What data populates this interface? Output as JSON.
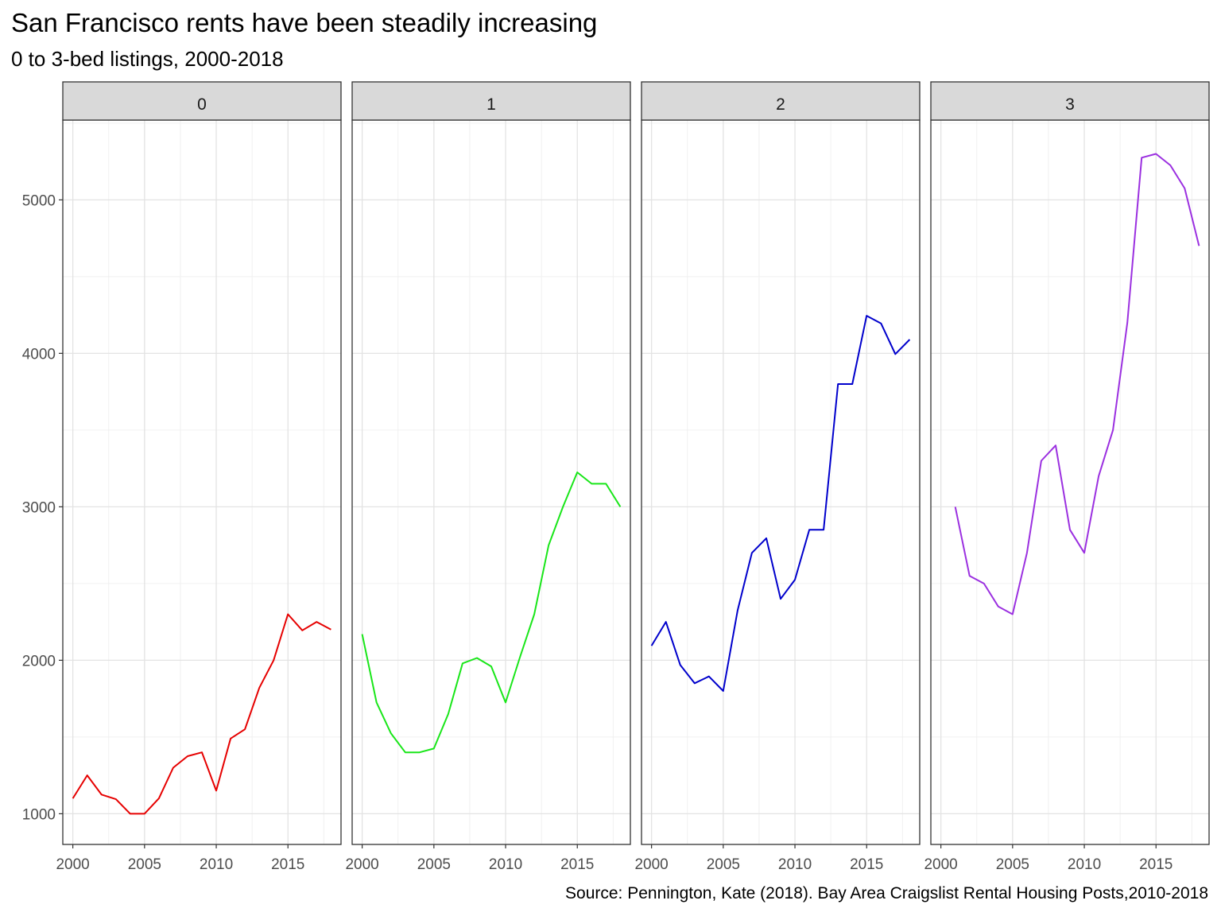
{
  "chart_data": {
    "type": "line",
    "title": "San Francisco rents have been steadily increasing",
    "subtitle": "0 to 3-bed listings,  2000-2018",
    "caption": "Source: Pennington, Kate (2018). Bay Area Craigslist Rental Housing Posts,2010-2018",
    "xlabel": "",
    "ylabel": "",
    "xlim": [
      1999.3,
      2018.7
    ],
    "ylim": [
      800,
      5520
    ],
    "x_ticks": [
      2000,
      2005,
      2010,
      2015
    ],
    "y_ticks": [
      1000,
      2000,
      3000,
      4000,
      5000
    ],
    "grid": true,
    "legend": "none",
    "facets": [
      {
        "label": "0",
        "color": "#e60000",
        "x": [
          2000,
          2001,
          2002,
          2003,
          2004,
          2005,
          2006,
          2007,
          2008,
          2009,
          2010,
          2011,
          2012,
          2013,
          2014,
          2015,
          2016,
          2017,
          2018
        ],
        "y": [
          1100,
          1250,
          1125,
          1095,
          1000,
          1000,
          1100,
          1300,
          1375,
          1400,
          1150,
          1490,
          1550,
          1820,
          2000,
          2300,
          2195,
          2250,
          2200
        ]
      },
      {
        "label": "1",
        "color": "#19e619",
        "x": [
          2000,
          2001,
          2002,
          2003,
          2004,
          2005,
          2006,
          2007,
          2008,
          2009,
          2010,
          2011,
          2012,
          2013,
          2014,
          2015,
          2016,
          2017,
          2018
        ],
        "y": [
          2170,
          1725,
          1525,
          1400,
          1400,
          1425,
          1650,
          1980,
          2015,
          1960,
          1725,
          2020,
          2300,
          2750,
          3000,
          3225,
          3150,
          3150,
          3000
        ]
      },
      {
        "label": "2",
        "color": "#0000cc",
        "x": [
          2000,
          2001,
          2002,
          2003,
          2004,
          2005,
          2006,
          2007,
          2008,
          2009,
          2010,
          2011,
          2012,
          2013,
          2014,
          2015,
          2016,
          2017,
          2018
        ],
        "y": [
          2095,
          2250,
          1970,
          1850,
          1895,
          1800,
          2325,
          2700,
          2795,
          2400,
          2525,
          2850,
          2850,
          3800,
          3800,
          4245,
          4195,
          3995,
          4090
        ]
      },
      {
        "label": "3",
        "color": "#9b30e0",
        "x": [
          2001,
          2002,
          2003,
          2004,
          2005,
          2006,
          2007,
          2008,
          2009,
          2010,
          2011,
          2012,
          2013,
          2014,
          2015,
          2016,
          2017,
          2018
        ],
        "y": [
          3000,
          2550,
          2500,
          2350,
          2300,
          2700,
          3300,
          3400,
          2850,
          2700,
          3200,
          3500,
          4200,
          5275,
          5300,
          5225,
          5075,
          4700
        ]
      }
    ]
  }
}
